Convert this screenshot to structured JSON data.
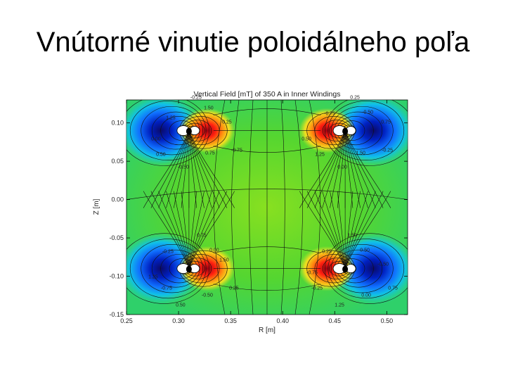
{
  "slide": {
    "title": "Vnútorné vinutie poloidálneho poľa"
  },
  "chart_data": {
    "type": "heatmap",
    "title": "Vertical Field [mT] of 350 A in Inner Windings",
    "xlabel": "R [m]",
    "ylabel": "Z [m]",
    "xlim": [
      0.25,
      0.52
    ],
    "ylim": [
      -0.15,
      0.13
    ],
    "x_ticks": [
      "0.25",
      "0.30",
      "0.35",
      "0.40",
      "0.45",
      "0.50"
    ],
    "y_ticks": [
      "0.10",
      "0.05",
      "0.00",
      "-0.05",
      "-0.10",
      "-0.15"
    ],
    "coils": [
      {
        "r": 0.31,
        "z": 0.09
      },
      {
        "r": 0.46,
        "z": 0.09
      },
      {
        "r": 0.31,
        "z": -0.09
      },
      {
        "r": 0.46,
        "z": -0.09
      }
    ],
    "contour_labels": [
      "1.50",
      "1.25",
      "0.75",
      "0.50",
      "0.25",
      "0.00",
      "-0.25",
      "-0.50",
      "-0.75"
    ],
    "grid": false
  }
}
